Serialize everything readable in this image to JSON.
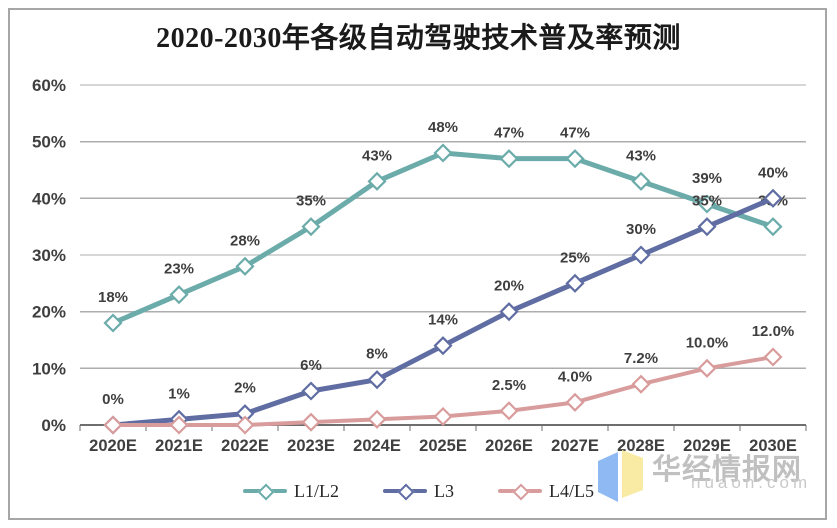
{
  "page": {
    "background": "#ffffff",
    "frame_border_color": "#a6a6a6"
  },
  "watermark": {
    "brand": "华经情报网",
    "domain": "huaon.com",
    "flag_blue": "#8fb9f3",
    "flag_yellow": "#faeba4"
  },
  "chart_data": {
    "type": "line",
    "title": "2020-2030年各级自动驾驶技术普及率预测",
    "categories": [
      "2020E",
      "2021E",
      "2022E",
      "2023E",
      "2024E",
      "2025E",
      "2026E",
      "2027E",
      "2028E",
      "2029E",
      "2030E"
    ],
    "series": [
      {
        "name": "L1/L2",
        "color": "#6bacaa",
        "marker": "diamond",
        "line_width": 5,
        "values": [
          18,
          23,
          28,
          35,
          43,
          48,
          47,
          47,
          43,
          39,
          35
        ],
        "labels": [
          "18%",
          "23%",
          "28%",
          "35%",
          "43%",
          "48%",
          "47%",
          "47%",
          "43%",
          "39%",
          "35%"
        ]
      },
      {
        "name": "L3",
        "color": "#5f6da3",
        "marker": "diamond",
        "line_width": 5,
        "values": [
          0,
          1,
          2,
          6,
          8,
          14,
          20,
          25,
          30,
          35,
          40
        ],
        "labels": [
          "0%",
          "1%",
          "2%",
          "6%",
          "8%",
          "14%",
          "20%",
          "25%",
          "30%",
          "35%",
          "40%"
        ]
      },
      {
        "name": "L4/L5",
        "color": "#d99c9c",
        "marker": "diamond",
        "line_width": 4,
        "values": [
          0,
          0,
          0,
          0.5,
          1,
          1.5,
          2.5,
          4,
          7.2,
          10,
          12
        ],
        "labels": [
          "",
          "",
          "",
          "",
          "",
          "",
          "2.5%",
          "4.0%",
          "7.2%",
          "10.0%",
          "12.0%"
        ]
      }
    ],
    "ylim": [
      0,
      60
    ],
    "ytick_labels": [
      "0%",
      "10%",
      "20%",
      "30%",
      "40%",
      "50%",
      "60%"
    ],
    "grid": true,
    "grid_color": "#adadad",
    "axis_color": "#6e6e6e",
    "label_color": "#3f3f3f",
    "legend_position": "bottom"
  }
}
